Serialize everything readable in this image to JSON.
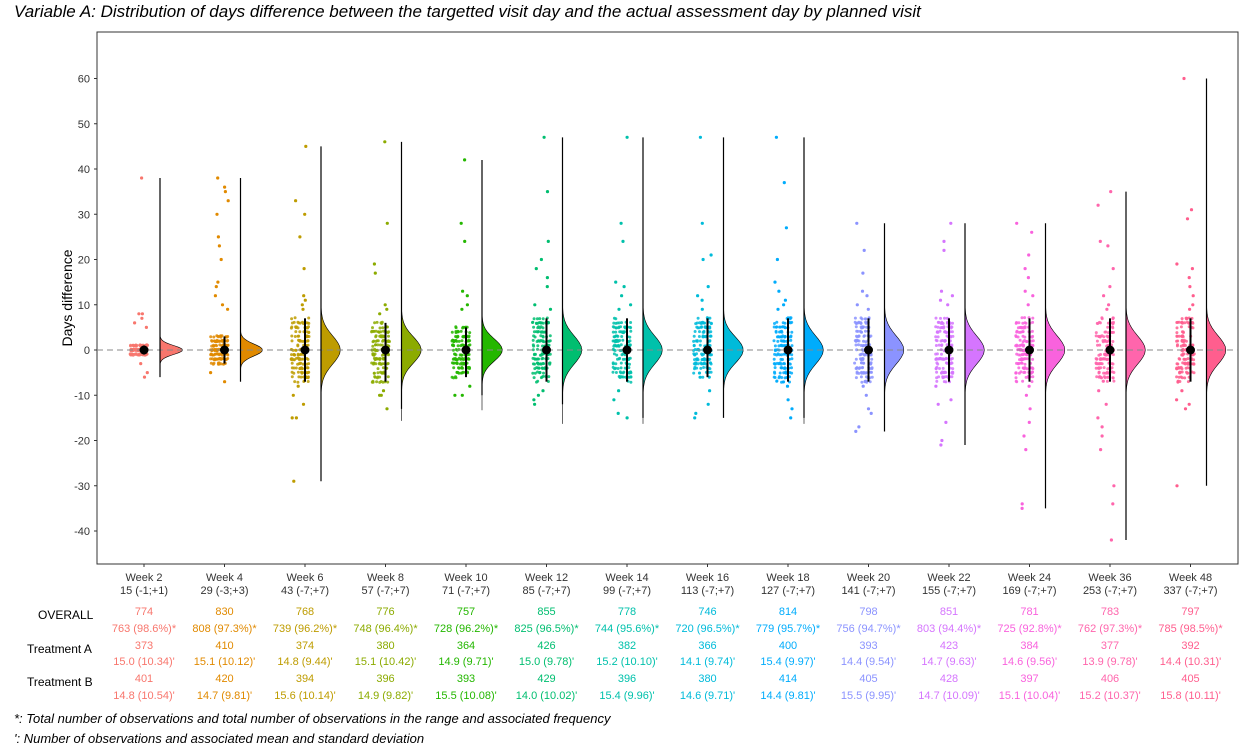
{
  "title": "Variable A: Distribution of days difference between the targetted visit day and the actual assessment day by planned visit",
  "footnotes": [
    "*: Total number of observations and total number of observations in the range and associated frequency",
    "': Number of observations and associated mean and standard deviation"
  ],
  "table": {
    "row_labels": [
      "OVERALL",
      "Treatment A",
      "Treatment B"
    ],
    "overall_n": [
      "774",
      "830",
      "768",
      "776",
      "757",
      "855",
      "778",
      "746",
      "814",
      "798",
      "851",
      "781",
      "783",
      "797"
    ],
    "overall_range": [
      "763 (98.6%)*",
      "808 (97.3%)*",
      "739 (96.2%)*",
      "748 (96.4%)*",
      "728 (96.2%)*",
      "825 (96.5%)*",
      "744 (95.6%)*",
      "720 (96.5%)*",
      "779 (95.7%)*",
      "756 (94.7%)*",
      "803 (94.4%)*",
      "725 (92.8%)*",
      "762 (97.3%)*",
      "785 (98.5%)*"
    ],
    "treatment_a_n": [
      "373",
      "410",
      "374",
      "380",
      "364",
      "426",
      "382",
      "366",
      "400",
      "393",
      "423",
      "384",
      "377",
      "392"
    ],
    "treatment_a_stats": [
      "15.0 (10.34)'",
      "15.1 (10.12)'",
      "14.8 (9.44)'",
      "15.1 (10.42)'",
      "14.9 (9.71)'",
      "15.0 (9.78)'",
      "15.2 (10.10)'",
      "14.1 (9.74)'",
      "15.4 (9.97)'",
      "14.4 (9.54)'",
      "14.7 (9.63)'",
      "14.6 (9.56)'",
      "13.9 (9.78)'",
      "14.4 (10.31)'"
    ],
    "treatment_b_n": [
      "401",
      "420",
      "394",
      "396",
      "393",
      "429",
      "396",
      "380",
      "414",
      "405",
      "428",
      "397",
      "406",
      "405"
    ],
    "treatment_b_stats": [
      "14.8 (10.54)'",
      "14.7 (9.81)'",
      "15.6 (10.14)'",
      "14.9 (9.82)'",
      "15.5 (10.08)'",
      "14.0 (10.02)'",
      "15.4 (9.96)'",
      "14.6 (9.71)'",
      "14.4 (9.81)'",
      "15.5 (9.95)'",
      "14.7 (10.09)'",
      "15.1 (10.04)'",
      "15.2 (10.37)'",
      "15.8 (10.11)'"
    ]
  },
  "chart_data": {
    "type": "scatter",
    "subtype": "raincloud (jittered points + half-violin + point-range + min-max line)",
    "title": "Variable A: Distribution of days difference between the targetted visit day and the actual assessment day by planned visit",
    "xlabel": "",
    "ylabel": "Days difference",
    "ylim": [
      -46,
      67
    ],
    "y_ticks": [
      -40,
      -30,
      -20,
      -10,
      0,
      10,
      20,
      30,
      40,
      50,
      60
    ],
    "reference_line_y": 0,
    "grid": false,
    "legend": "none",
    "categories": [
      "Week 2",
      "Week 4",
      "Week 6",
      "Week 8",
      "Week 10",
      "Week 12",
      "Week 14",
      "Week 16",
      "Week 18",
      "Week 20",
      "Week 22",
      "Week 24",
      "Week 36",
      "Week 48"
    ],
    "category_sublabels": [
      "15 (-1;+1)",
      "29 (-3;+3)",
      "43 (-7;+7)",
      "57 (-7;+7)",
      "71 (-7;+7)",
      "85 (-7;+7)",
      "99 (-7;+7)",
      "113 (-7;+7)",
      "127 (-7;+7)",
      "141 (-7;+7)",
      "155 (-7;+7)",
      "169 (-7;+7)",
      "253 (-7;+7)",
      "337 (-7;+7)"
    ],
    "colors": [
      "#F8766D",
      "#E18A00",
      "#BE9C00",
      "#8CAB00",
      "#24B700",
      "#00BE70",
      "#00C1AB",
      "#00BBDA",
      "#00ACFC",
      "#8B93FF",
      "#D575FE",
      "#F962DD",
      "#FF65AC",
      "#FF5E8E"
    ],
    "series": [
      {
        "median": 0,
        "q1": -1,
        "q3": 1,
        "min": -6,
        "max": 38,
        "outliers": [
          8,
          8,
          7,
          6,
          5,
          -3,
          -5,
          -6,
          38
        ]
      },
      {
        "median": 0,
        "q1": -3,
        "q3": 3,
        "min": -7,
        "max": 38,
        "outliers": [
          38,
          36,
          35,
          33,
          30,
          25,
          23,
          20,
          15,
          14,
          12,
          10,
          9,
          -5,
          -7
        ]
      },
      {
        "median": 0,
        "q1": -7,
        "q3": 7,
        "min": -29,
        "max": 45,
        "outliers": [
          45,
          33,
          30,
          25,
          18,
          12,
          11,
          10,
          9,
          -8,
          -10,
          -12,
          -15,
          -15,
          -29
        ]
      },
      {
        "median": 0,
        "q1": -7,
        "q3": 6,
        "min": -13,
        "max": 46,
        "outliers": [
          46,
          28,
          19,
          17,
          10,
          9,
          8,
          -9,
          -10,
          -10,
          -13
        ]
      },
      {
        "median": 0,
        "q1": -6,
        "q3": 5,
        "min": -10,
        "max": 42,
        "outliers": [
          42,
          28,
          24,
          13,
          12,
          10,
          9,
          -8,
          -10,
          -10
        ]
      },
      {
        "median": 0,
        "q1": -7,
        "q3": 7,
        "min": -12,
        "max": 47,
        "outliers": [
          47,
          35,
          24,
          20,
          18,
          16,
          14,
          10,
          9,
          -9,
          -10,
          -11,
          -12
        ]
      },
      {
        "median": 0,
        "q1": -7,
        "q3": 7,
        "min": -15,
        "max": 47,
        "outliers": [
          47,
          28,
          24,
          15,
          14,
          12,
          10,
          9,
          -9,
          -11,
          -14,
          -15
        ]
      },
      {
        "median": 0,
        "q1": -6,
        "q3": 7,
        "min": -15,
        "max": 47,
        "outliers": [
          47,
          28,
          21,
          20,
          14,
          12,
          11,
          9,
          -9,
          -12,
          -14,
          -15
        ]
      },
      {
        "median": 0,
        "q1": -7,
        "q3": 7,
        "min": -15,
        "max": 47,
        "outliers": [
          47,
          37,
          27,
          20,
          15,
          13,
          11,
          10,
          9,
          -8,
          -11,
          -13,
          -15
        ]
      },
      {
        "median": 0,
        "q1": -7,
        "q3": 7,
        "min": -18,
        "max": 28,
        "outliers": [
          28,
          22,
          17,
          13,
          12,
          10,
          9,
          -8,
          -10,
          -13,
          -14,
          -17,
          -18
        ]
      },
      {
        "median": 0,
        "q1": -7,
        "q3": 7,
        "min": -21,
        "max": 28,
        "outliers": [
          28,
          24,
          22,
          13,
          12,
          11,
          10,
          -8,
          -11,
          -12,
          -16,
          -20,
          -21
        ]
      },
      {
        "median": 0,
        "q1": -7,
        "q3": 7,
        "min": -35,
        "max": 28,
        "outliers": [
          28,
          26,
          21,
          18,
          16,
          13,
          12,
          10,
          -8,
          -10,
          -13,
          -16,
          -19,
          -22,
          -34,
          -35
        ]
      },
      {
        "median": 0,
        "q1": -7,
        "q3": 7,
        "min": -42,
        "max": 35,
        "outliers": [
          35,
          32,
          24,
          23,
          18,
          14,
          12,
          10,
          9,
          -9,
          -12,
          -15,
          -17,
          -19,
          -22,
          -30,
          -34,
          -42
        ]
      },
      {
        "median": 0,
        "q1": -7,
        "q3": 7,
        "min": -30,
        "max": 60,
        "outliers": [
          60,
          31,
          29,
          19,
          18,
          16,
          14,
          12,
          10,
          9,
          -9,
          -11,
          -12,
          -13,
          -30
        ]
      }
    ]
  }
}
